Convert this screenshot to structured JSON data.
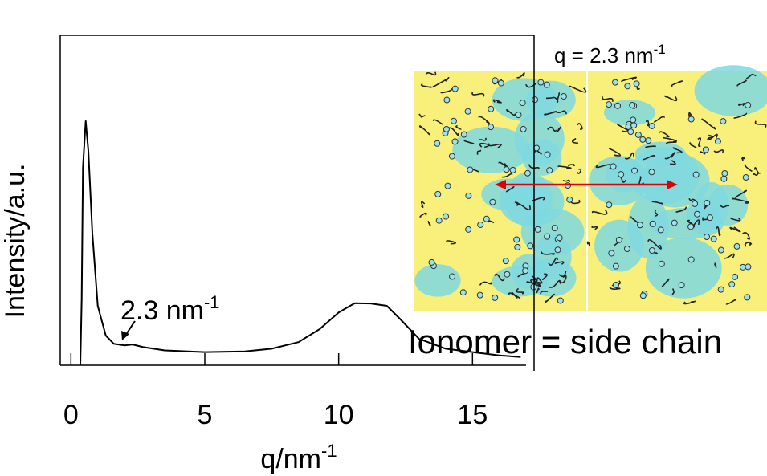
{
  "chart_data": {
    "type": "line",
    "y_label": "Intensity/a.u.",
    "x_label": {
      "text": "q/nm",
      "sup": "-1"
    },
    "annotations": [
      {
        "text": "2.3 nm",
        "sup": "-1"
      },
      {
        "text": "q = 2.3 nm",
        "sup": "-1"
      },
      {
        "text": "Ionomer = side chain"
      }
    ],
    "x": [
      0.35,
      0.4,
      0.45,
      0.55,
      0.65,
      0.8,
      1.0,
      1.3,
      1.6,
      2.0,
      2.3,
      2.7,
      3.5,
      5,
      6.5,
      7.5,
      8.5,
      9.3,
      10.0,
      10.6,
      11.2,
      11.8,
      12.3,
      13,
      14,
      15,
      16,
      16.8
    ],
    "values": [
      0,
      20,
      60,
      74,
      65,
      40,
      18,
      9,
      6.5,
      6,
      6.3,
      5.5,
      4.5,
      4,
      4.2,
      5,
      7,
      11,
      16,
      18.8,
      18.7,
      18,
      14,
      8,
      5,
      4,
      3,
      2.5
    ],
    "color": "#000000",
    "xlim": [
      -0.4,
      17.3
    ],
    "ylim": [
      0,
      100
    ],
    "xticks": [
      0,
      5,
      10,
      15
    ]
  }
}
